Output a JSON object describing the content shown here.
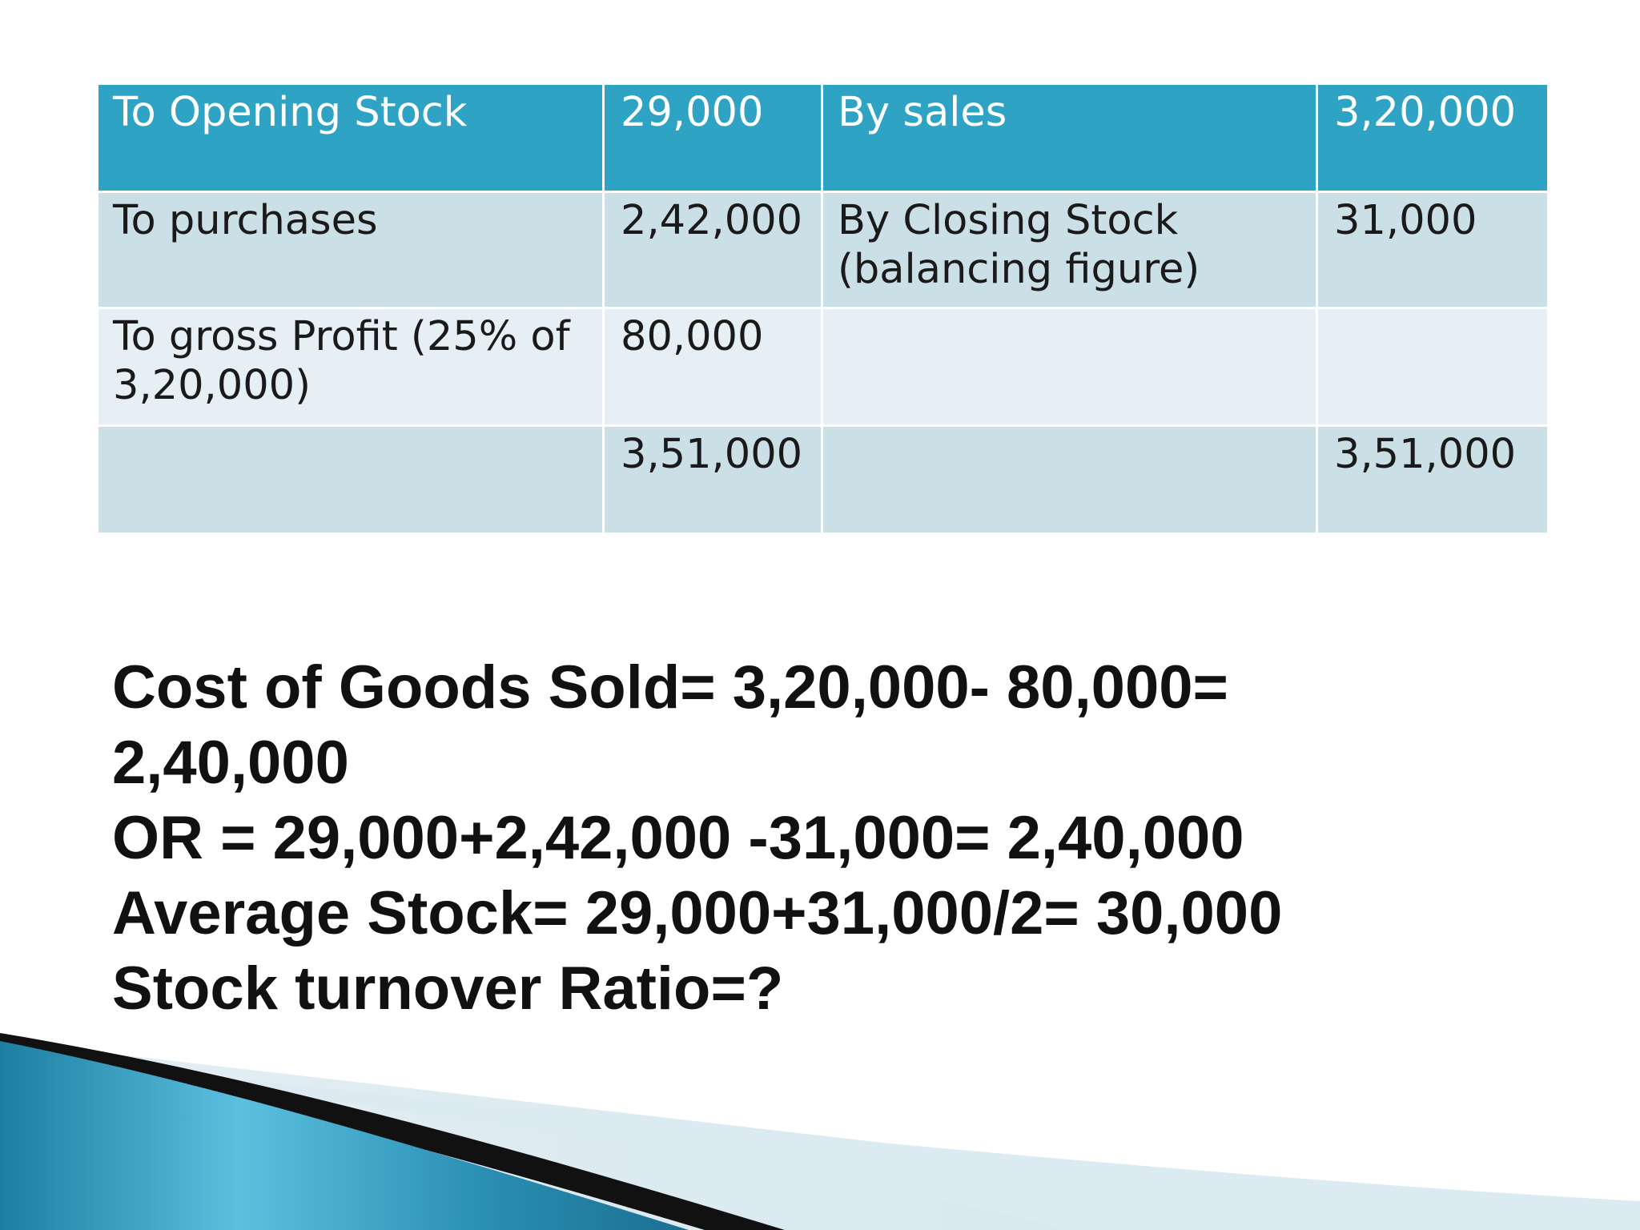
{
  "ledger": {
    "rows": [
      {
        "left_label": "To Opening Stock",
        "left_amount": "29,000",
        "right_label": "By sales",
        "right_amount": "3,20,000"
      },
      {
        "left_label": "To purchases",
        "left_amount": "2,42,000",
        "right_label": "By Closing Stock (balancing figure)",
        "right_amount": "31,000"
      },
      {
        "left_label": "To gross Profit (25% of 3,20,000)",
        "left_amount": "80,000",
        "right_label": "",
        "right_amount": ""
      },
      {
        "left_label": "",
        "left_amount": "3,51,000",
        "right_label": "",
        "right_amount": "3,51,000"
      }
    ]
  },
  "notes": {
    "cogs_line1": "Cost of Goods Sold= 3,20,000- 80,000=",
    "cogs_line2": "2,40,000",
    "or_line": "OR = 29,000+2,42,000 -31,000= 2,40,000",
    "avg_stock_line": "Average Stock= 29,000+31,000/2= 30,000",
    "question_line": "Stock turnover Ratio=?"
  },
  "theme": {
    "header_color": "#2ea3c3",
    "row_dark": "#cbdfe6",
    "row_light": "#e6eff3",
    "accent_blue": "#2a8fb4"
  }
}
